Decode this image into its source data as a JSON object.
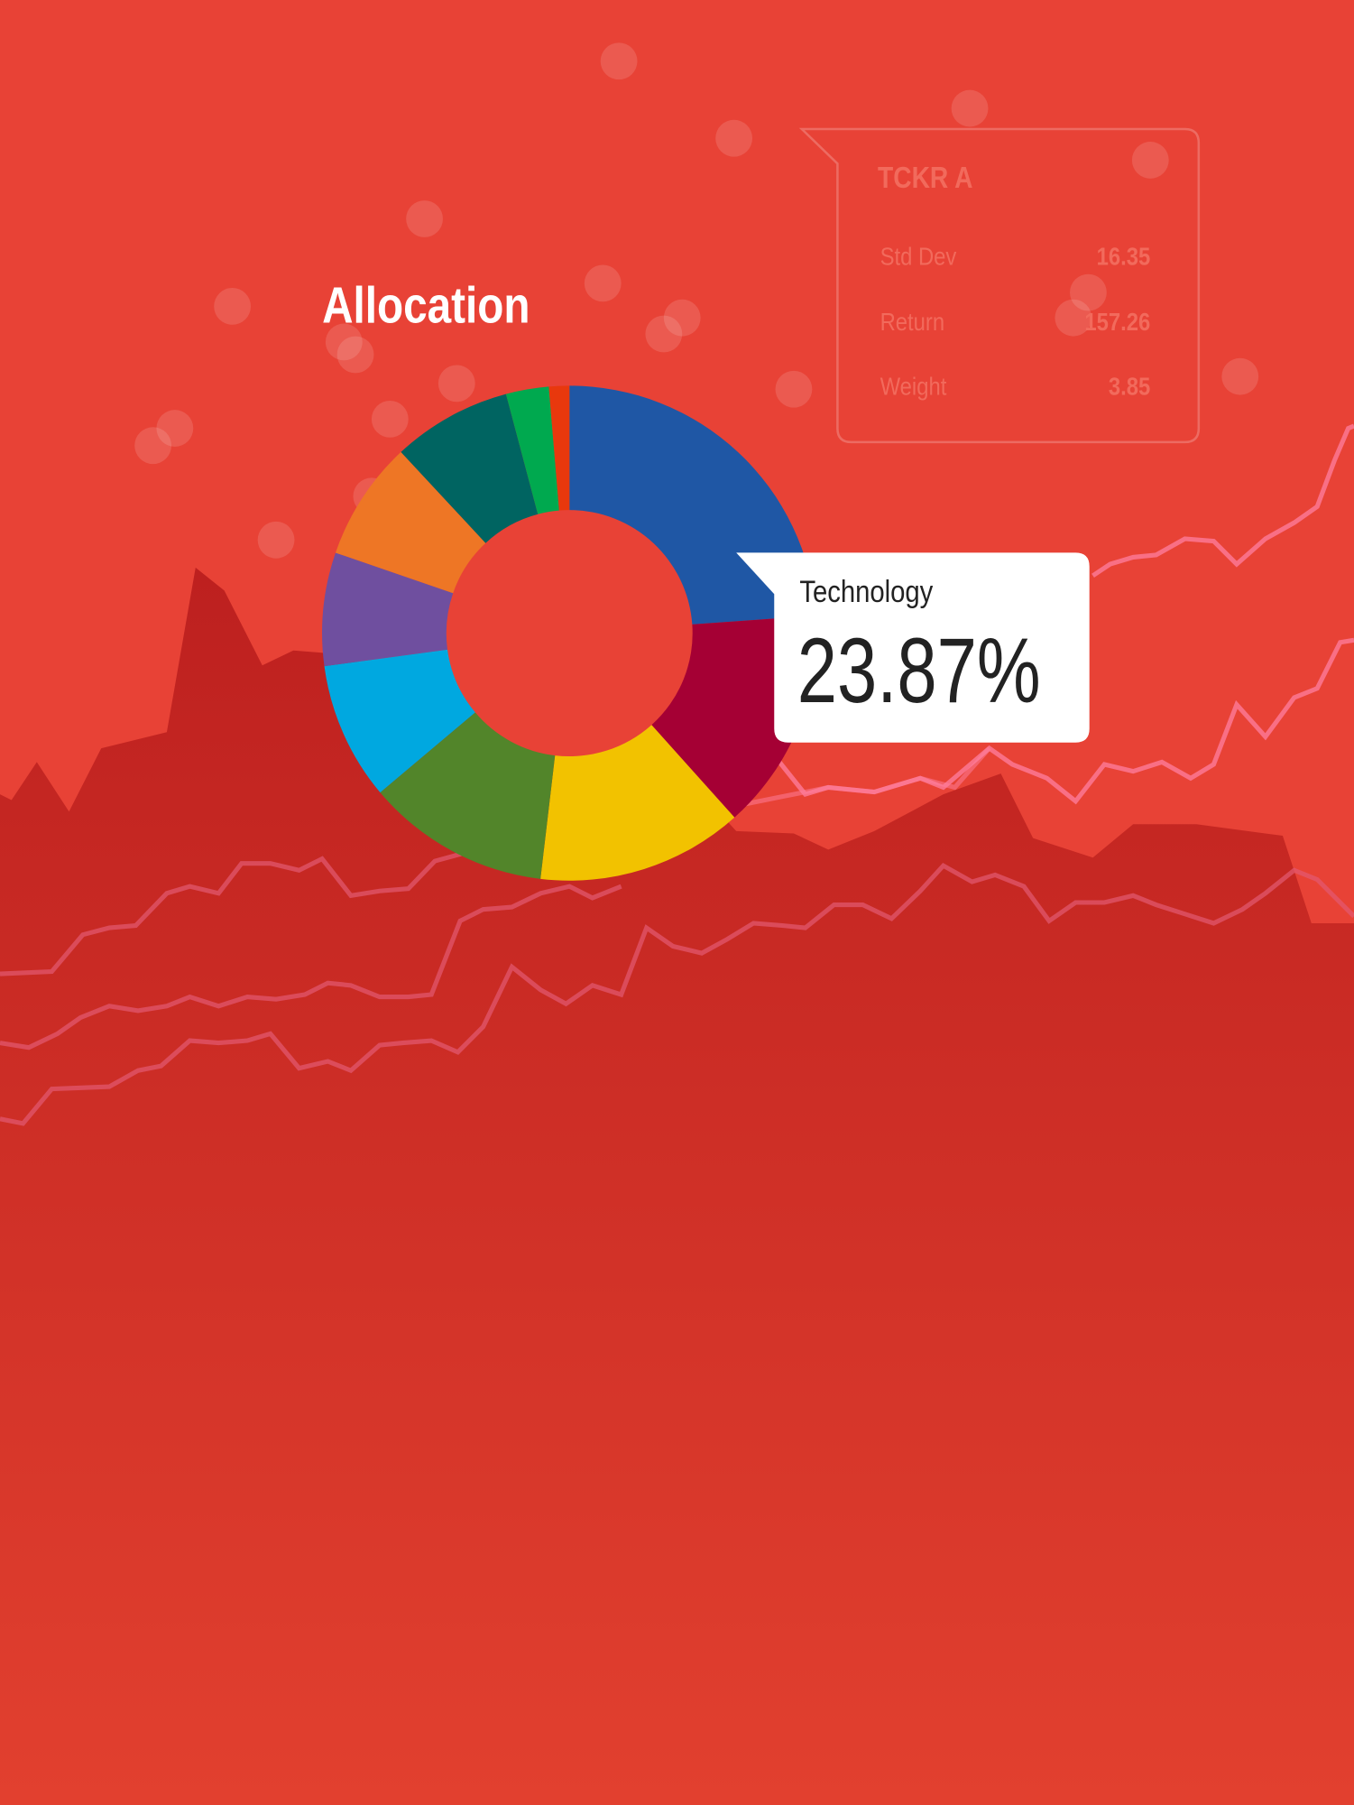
{
  "chart_data": {
    "type": "donut",
    "title": "Allocation",
    "categories": [
      "Technology",
      null,
      null,
      null,
      null,
      null,
      null,
      null,
      null,
      null
    ],
    "values": [
      23.87,
      14.5,
      13.5,
      12,
      9,
      7.4,
      7.8,
      7.8,
      2.8,
      1.33
    ],
    "value_labels": [
      "23.87%",
      null,
      null,
      null,
      null,
      null,
      null,
      null,
      null,
      null
    ],
    "colors": [
      "#1f57a5",
      "#a50034",
      "#f2c200",
      "#52852a",
      "#00a8e0",
      "#6f4f9f",
      "#ee7625",
      "#006461",
      "#00a94f",
      "#e8380d"
    ]
  },
  "card": {
    "title": "TCKR A",
    "rows": [
      [
        "Std Dev",
        "16.35"
      ],
      [
        "Return",
        "157.26"
      ],
      [
        "Weight",
        "3.85"
      ]
    ]
  }
}
